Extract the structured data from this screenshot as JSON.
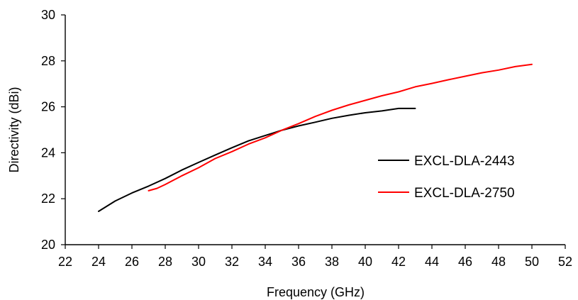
{
  "chart_data": {
    "type": "line",
    "xlabel": "Frequency (GHz)",
    "ylabel": "Directivity (dBi)",
    "xlim": [
      22,
      52
    ],
    "ylim": [
      20,
      30
    ],
    "xticks": [
      22,
      24,
      26,
      28,
      30,
      32,
      34,
      36,
      38,
      40,
      42,
      44,
      46,
      48,
      50,
      52
    ],
    "yticks": [
      20,
      22,
      24,
      26,
      28,
      30
    ],
    "grid": false,
    "legend_position": "right-middle",
    "series": [
      {
        "name": "EXCL-DLA-2443",
        "color": "#000000",
        "x": [
          24,
          25,
          26,
          27,
          28,
          29,
          30,
          31,
          32,
          33,
          34,
          35,
          36,
          37,
          38,
          39,
          40,
          41,
          42,
          43
        ],
        "y": [
          21.45,
          21.9,
          22.25,
          22.55,
          22.88,
          23.25,
          23.58,
          23.9,
          24.22,
          24.52,
          24.75,
          24.98,
          25.17,
          25.33,
          25.5,
          25.63,
          25.74,
          25.82,
          25.93,
          25.93
        ]
      },
      {
        "name": "EXCL-DLA-2750",
        "color": "#ff0000",
        "x": [
          27,
          27.5,
          28,
          29,
          30,
          31,
          32,
          33,
          34,
          35,
          36,
          37,
          38,
          39,
          40,
          41,
          42,
          43,
          44,
          45,
          46,
          47,
          48,
          49,
          50
        ],
        "y": [
          22.35,
          22.45,
          22.62,
          23.0,
          23.35,
          23.75,
          24.05,
          24.38,
          24.65,
          24.98,
          25.27,
          25.58,
          25.85,
          26.08,
          26.28,
          26.48,
          26.65,
          26.87,
          27.02,
          27.18,
          27.33,
          27.48,
          27.6,
          27.75,
          27.85
        ]
      }
    ]
  }
}
